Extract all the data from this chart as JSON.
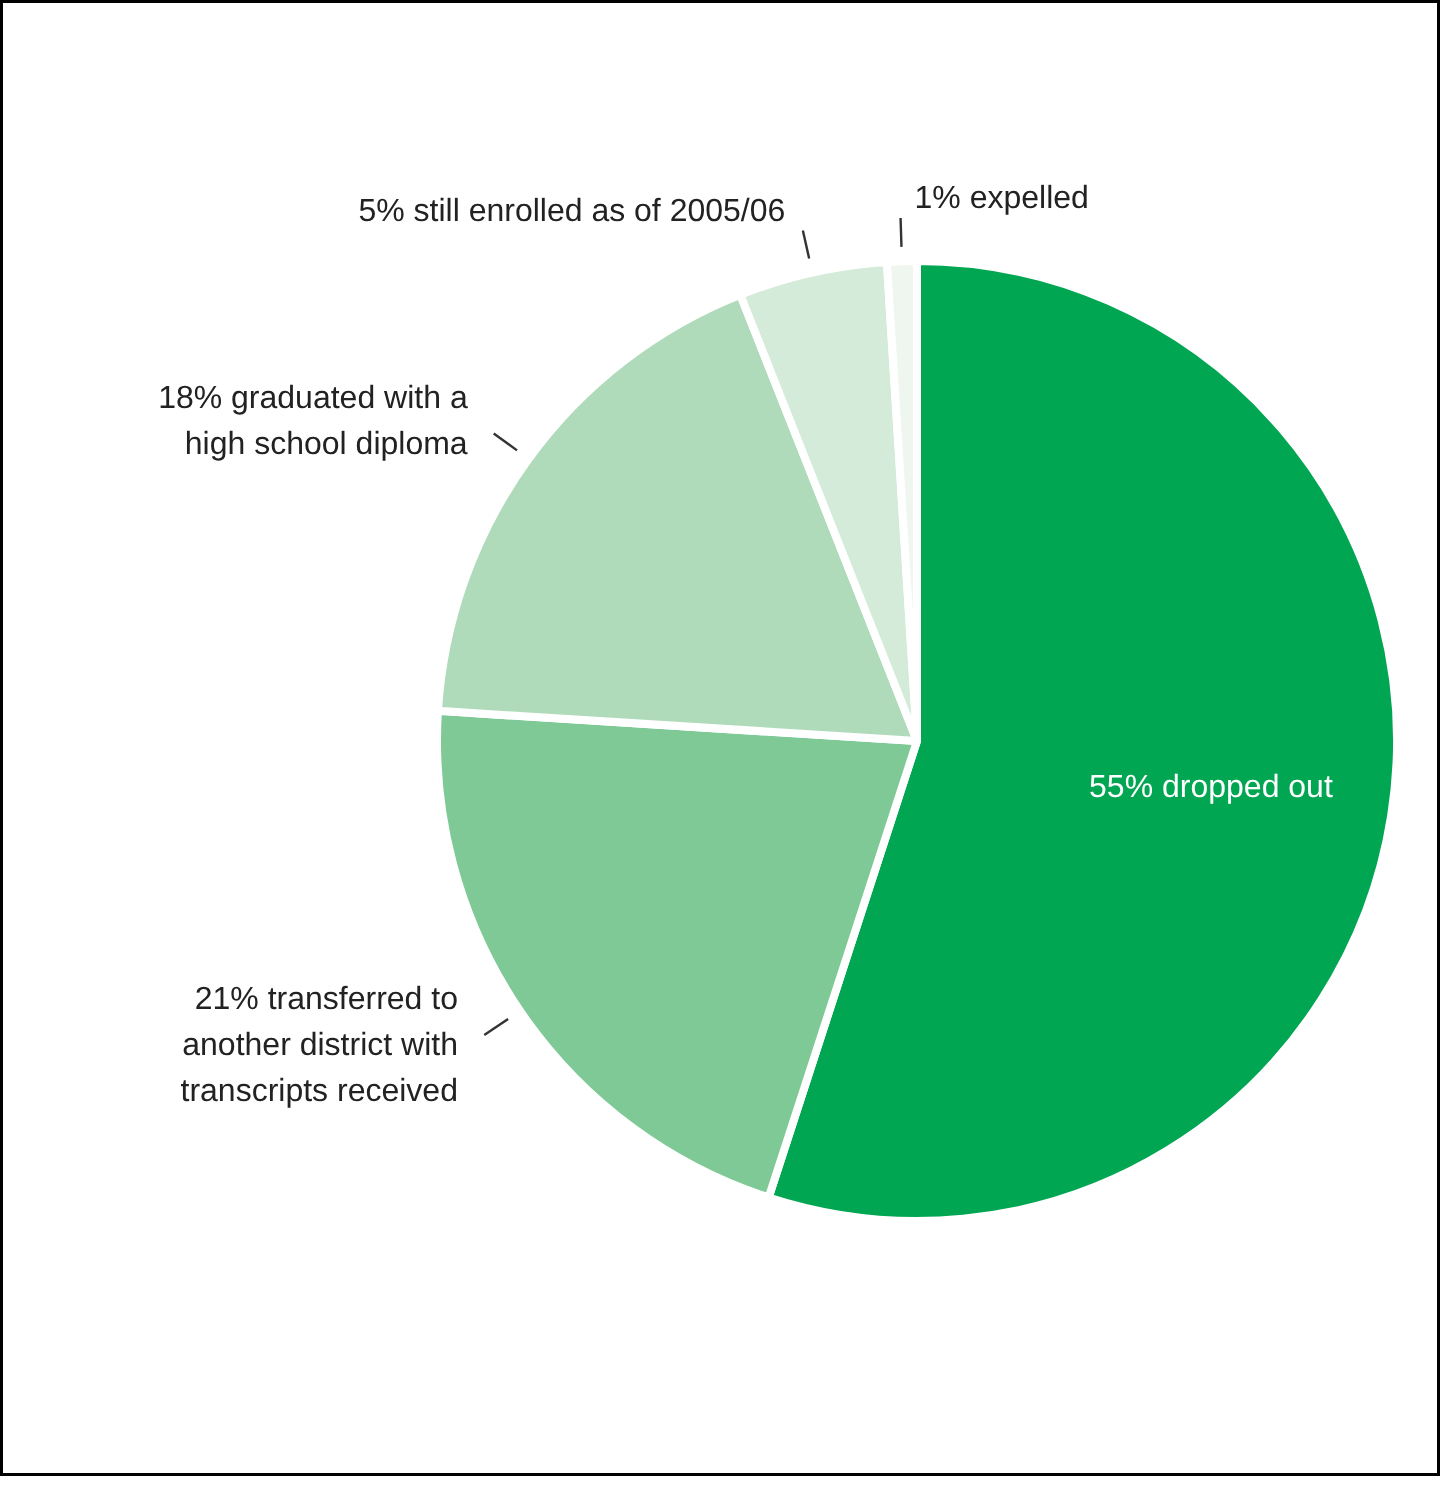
{
  "chart_data": {
    "type": "pie",
    "categories": [
      "55% dropped out",
      "21% transferred to\nanother district with\ntranscripts received",
      "18% graduated with a\nhigh school diploma",
      "5% still enrolled as of 2005/06",
      "1% expelled"
    ],
    "values": [
      55,
      21,
      18,
      5,
      1
    ],
    "colors": [
      "#00a651",
      "#7fc996",
      "#b0dbbb",
      "#d3ebd8",
      "#eef6ef"
    ]
  }
}
